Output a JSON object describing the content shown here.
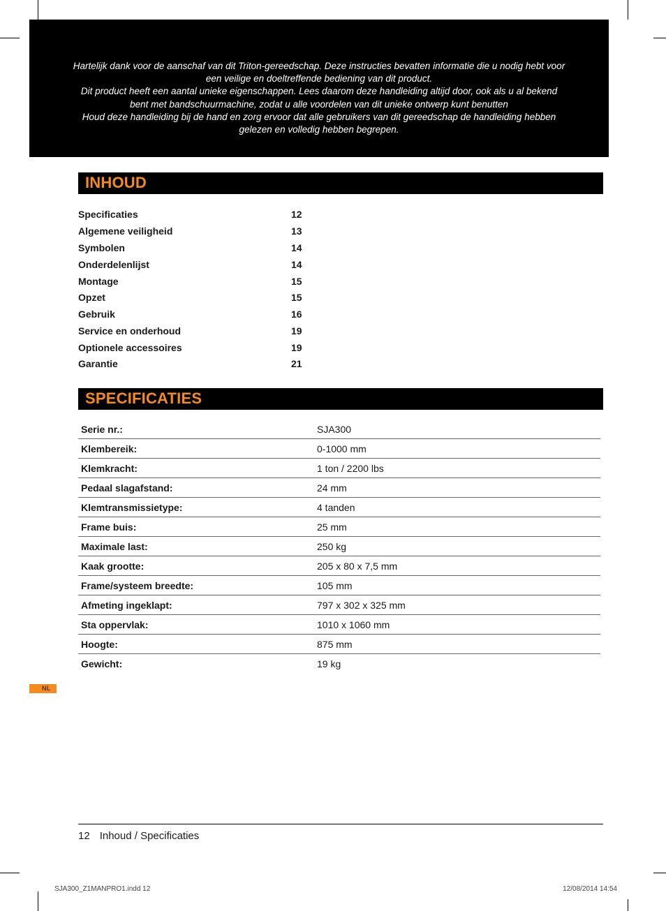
{
  "intro": {
    "p1": "Hartelijk dank voor de aanschaf van dit Triton-gereedschap. Deze instructies bevatten informatie die u nodig hebt voor een veilige en doeltreffende bediening van dit product.",
    "p2": "Dit product heeft een aantal unieke eigenschappen. Lees daarom deze handleiding altijd door, ook als u al bekend bent met bandschuurmachine, zodat u alle voordelen van dit unieke ontwerp kunt benutten",
    "p3": "Houd deze handleiding bij de hand en zorg ervoor dat alle gebruikers van dit gereedschap de handleiding hebben gelezen en volledig hebben begrepen."
  },
  "sections": {
    "toc_heading": "INHOUD",
    "spec_heading": "SPECIFICATIES"
  },
  "toc": [
    {
      "label": "Specificaties",
      "page": "12"
    },
    {
      "label": "Algemene veiligheid",
      "page": "13"
    },
    {
      "label": "Symbolen",
      "page": "14"
    },
    {
      "label": "Onderdelenlijst",
      "page": "14"
    },
    {
      "label": "Montage",
      "page": "15"
    },
    {
      "label": "Opzet",
      "page": "15"
    },
    {
      "label": "Gebruik",
      "page": "16"
    },
    {
      "label": "Service en onderhoud",
      "page": "19"
    },
    {
      "label": "Optionele accessoires",
      "page": "19"
    },
    {
      "label": "Garantie",
      "page": "21"
    }
  ],
  "specs": [
    {
      "label": "Serie nr.:",
      "value": "SJA300"
    },
    {
      "label": "Klembereik:",
      "value": "0-1000 mm"
    },
    {
      "label": "Klemkracht:",
      "value": "1 ton  / 2200 lbs"
    },
    {
      "label": "Pedaal slagafstand:",
      "value": "24 mm"
    },
    {
      "label": "Klemtransmissietype:",
      "value": "4 tanden"
    },
    {
      "label": "Frame buis:",
      "value": "25 mm"
    },
    {
      "label": "Maximale last:",
      "value": "250 kg"
    },
    {
      "label": "Kaak grootte:",
      "value": "205 x 80 x 7,5 mm"
    },
    {
      "label": "Frame/systeem breedte:",
      "value": "105 mm"
    },
    {
      "label": "Afmeting ingeklapt:",
      "value": "797 x 302 x 325 mm"
    },
    {
      "label": "Sta oppervlak:",
      "value": "1010 x 1060 mm"
    },
    {
      "label": "Hoogte:",
      "value": "875 mm"
    },
    {
      "label": "Gewicht:",
      "value": "19 kg"
    }
  ],
  "lang_tab": "NL",
  "footer": {
    "page_number": "12",
    "section_path": "Inhoud / Specificaties"
  },
  "slug": {
    "file": "SJA300_Z1MANPRO1.indd   12",
    "stamp": "12/08/2014   14:54"
  },
  "colors": {
    "accent": "#f58a1f",
    "text": "#1a1a1a",
    "bg": "#ffffff"
  }
}
